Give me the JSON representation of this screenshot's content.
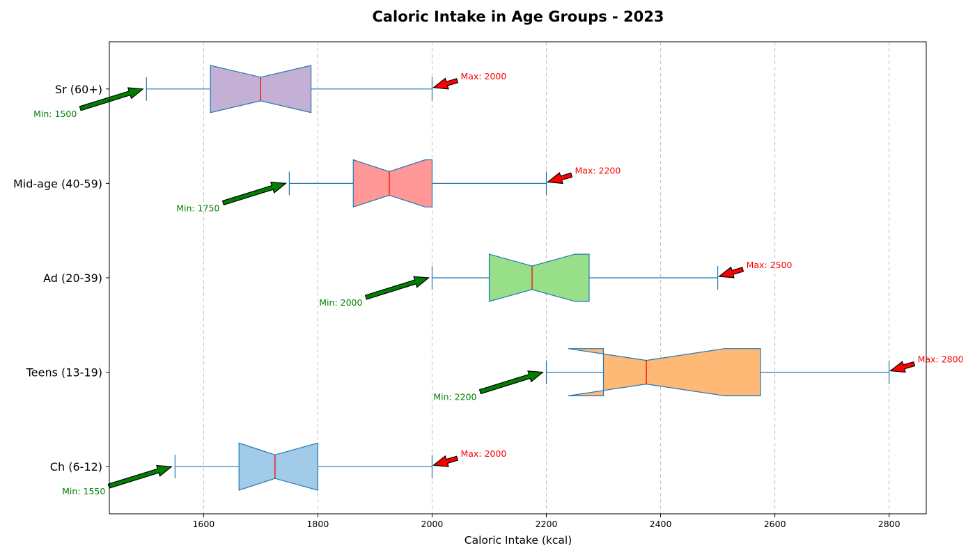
{
  "chart_data": {
    "type": "box",
    "orientation": "horizontal",
    "notched": true,
    "title": "Caloric Intake in Age Groups - 2023",
    "xlabel": "Caloric Intake (kcal)",
    "ylabel": "",
    "xlim": [
      1435,
      2865
    ],
    "xticks": [
      1600,
      1800,
      2000,
      2200,
      2400,
      2600,
      2800
    ],
    "grid": "x, dashed",
    "categories": [
      "Ch (6-12)",
      "Teens (13-19)",
      "Ad (20-39)",
      "Mid-age (40-59)",
      "Sr (60+)"
    ],
    "boxes": [
      {
        "label": "Ch (6-12)",
        "min": 1550,
        "q1": 1662,
        "median": 1725,
        "q3": 1800,
        "max": 2000,
        "notch_low": 1662,
        "notch_high": 1800,
        "color": "#a1cbe8",
        "min_text": "Min: 1550",
        "max_text": "Max: 2000"
      },
      {
        "label": "Teens (13-19)",
        "min": 2200,
        "q1": 2300,
        "median": 2375,
        "q3": 2575,
        "max": 2800,
        "notch_low": 2238,
        "notch_high": 2512,
        "color": "#ffb976",
        "min_text": "Min: 2200",
        "max_text": "Max: 2800"
      },
      {
        "label": "Ad (20-39)",
        "min": 2000,
        "q1": 2100,
        "median": 2175,
        "q3": 2275,
        "max": 2500,
        "notch_low": 2100,
        "notch_high": 2250,
        "color": "#98df8a",
        "min_text": "Min: 2000",
        "max_text": "Max: 2500"
      },
      {
        "label": "Mid-age (40-59)",
        "min": 1750,
        "q1": 1862,
        "median": 1925,
        "q3": 2000,
        "max": 2200,
        "notch_low": 1862,
        "notch_high": 1988,
        "color": "#ff9896",
        "min_text": "Min: 1750",
        "max_text": "Max: 2200"
      },
      {
        "label": "Sr (60+)",
        "min": 1500,
        "q1": 1612,
        "median": 1700,
        "q3": 1788,
        "max": 2000,
        "notch_low": 1612,
        "notch_high": 1788,
        "color": "#c5b0d5",
        "min_text": "Min: 1500",
        "max_text": "Max: 2000"
      }
    ],
    "colors": {
      "edge": "#1f77b4",
      "median": "#ff0000",
      "max_arrow": "#ff0000",
      "min_arrow": "#008000",
      "grid": "#b0b0b0"
    }
  }
}
